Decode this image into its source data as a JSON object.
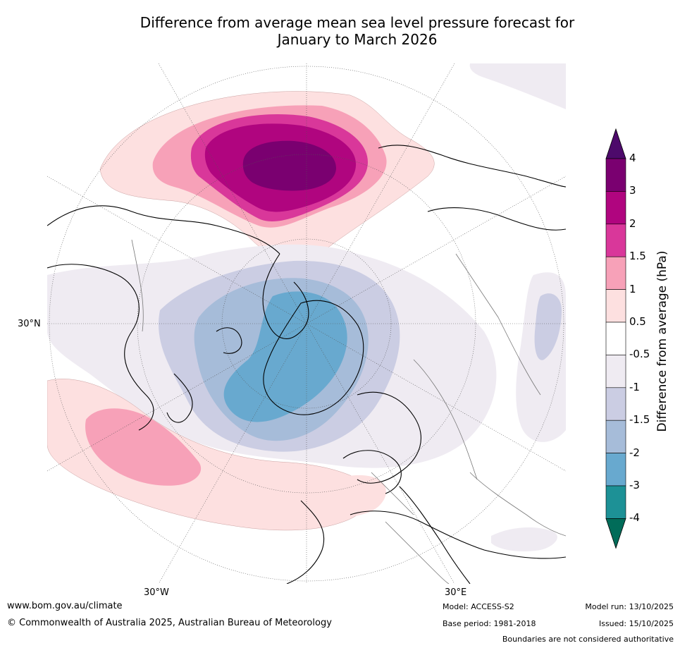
{
  "title_line1": "Difference from average mean sea level pressure forecast for",
  "title_line2": "January to March 2026",
  "map_labels": {
    "lat_30n": "30°N",
    "lon_30w": "30°W",
    "lon_30e": "30°E"
  },
  "colorbar": {
    "title": "Difference from average (hPa)",
    "ticks": [
      "4",
      "3",
      "2",
      "1.5",
      "1",
      "0.5",
      "-0.5",
      "-1",
      "-1.5",
      "-2",
      "-3",
      "-4"
    ],
    "colors": {
      "above_4": "#4d0a6b",
      "3_4": "#7a0070",
      "2_3": "#b0057f",
      "1.5_2": "#d9379a",
      "1_1.5": "#f7a1b8",
      "0.5_1": "#fde0e0",
      "-0.5_0.5": "#ffffff",
      "-1_-0.5": "#efebf2",
      "-1.5_-1": "#cbcde3",
      "-2_-1.5": "#a6bcd9",
      "-3_-2": "#68a9cf",
      "-4_-3": "#1d9196",
      "below_-4": "#016c59"
    }
  },
  "footer": {
    "url": "www.bom.gov.au/climate",
    "copyright": "© Commonwealth of Australia 2025, Australian Bureau of Meteorology",
    "model": "Model: ACCESS-S2",
    "base_period": "Base period: 1981-2018",
    "model_run": "Model run: 13/10/2025",
    "issued": "Issued: 15/10/2025",
    "boundaries": "Boundaries are not considered authoritative"
  }
}
